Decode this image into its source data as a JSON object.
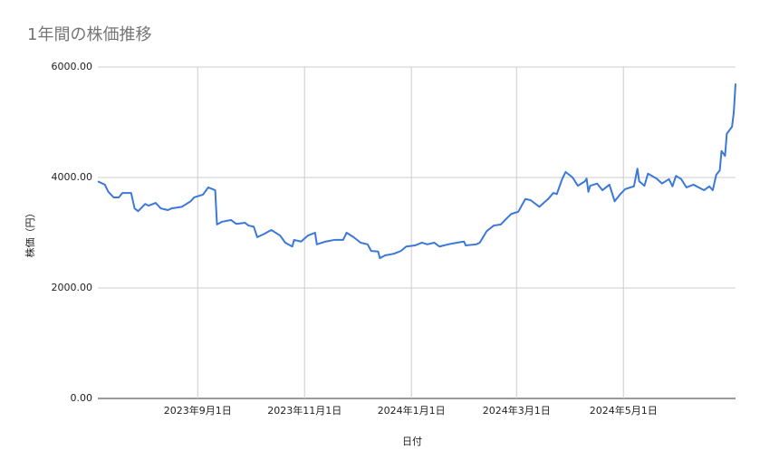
{
  "chart_data": {
    "type": "line",
    "title": "1年間の株価推移",
    "x_label": "日付",
    "y_label": "株価（円）",
    "color": "#3c78d8",
    "grid": true,
    "xlim": [
      "2023-07-06",
      "2024-07-04"
    ],
    "xticks": [
      {
        "value": "2023-09-01",
        "label": "2023年9月1日"
      },
      {
        "value": "2023-11-01",
        "label": "2023年11月1日"
      },
      {
        "value": "2024-01-01",
        "label": "2024年1月1日"
      },
      {
        "value": "2024-03-01",
        "label": "2024年3月1日"
      },
      {
        "value": "2024-05-01",
        "label": "2024年5月1日"
      }
    ],
    "ylim": [
      0,
      6000
    ],
    "yticks": [
      {
        "value": 0,
        "label": "0.00"
      },
      {
        "value": 2000,
        "label": "2000.00"
      },
      {
        "value": 4000,
        "label": "4000.00"
      },
      {
        "value": 6000,
        "label": "6000.00"
      }
    ],
    "x": [
      "2023-07-06",
      "2023-07-10",
      "2023-07-12",
      "2023-07-15",
      "2023-07-18",
      "2023-07-20",
      "2023-07-25",
      "2023-07-27",
      "2023-07-29",
      "2023-08-02",
      "2023-08-04",
      "2023-08-08",
      "2023-08-11",
      "2023-08-15",
      "2023-08-17",
      "2023-08-23",
      "2023-08-28",
      "2023-08-30",
      "2023-09-04",
      "2023-09-07",
      "2023-09-11",
      "2023-09-12",
      "2023-09-15",
      "2023-09-20",
      "2023-09-23",
      "2023-09-28",
      "2023-09-30",
      "2023-10-03",
      "2023-10-05",
      "2023-10-09",
      "2023-10-13",
      "2023-10-18",
      "2023-10-21",
      "2023-10-25",
      "2023-10-26",
      "2023-10-30",
      "2023-11-03",
      "2023-11-07",
      "2023-11-08",
      "2023-11-13",
      "2023-11-18",
      "2023-11-23",
      "2023-11-25",
      "2023-11-29",
      "2023-12-03",
      "2023-12-07",
      "2023-12-09",
      "2023-12-13",
      "2023-12-14",
      "2023-12-17",
      "2023-12-22",
      "2023-12-26",
      "2023-12-29",
      "2024-01-03",
      "2024-01-07",
      "2024-01-10",
      "2024-01-14",
      "2024-01-17",
      "2024-01-22",
      "2024-01-27",
      "2024-01-31",
      "2024-02-01",
      "2024-02-07",
      "2024-02-09",
      "2024-02-13",
      "2024-02-17",
      "2024-02-21",
      "2024-02-25",
      "2024-02-27",
      "2024-03-02",
      "2024-03-06",
      "2024-03-09",
      "2024-03-14",
      "2024-03-19",
      "2024-03-22",
      "2024-03-24",
      "2024-03-27",
      "2024-03-29",
      "2024-04-02",
      "2024-04-05",
      "2024-04-09",
      "2024-04-10",
      "2024-04-11",
      "2024-04-12",
      "2024-04-16",
      "2024-04-19",
      "2024-04-23",
      "2024-04-26",
      "2024-04-29",
      "2024-05-02",
      "2024-05-07",
      "2024-05-09",
      "2024-05-10",
      "2024-05-13",
      "2024-05-15",
      "2024-05-20",
      "2024-05-23",
      "2024-05-27",
      "2024-05-29",
      "2024-05-31",
      "2024-06-03",
      "2024-06-06",
      "2024-06-10",
      "2024-06-13",
      "2024-06-16",
      "2024-06-19",
      "2024-06-21",
      "2024-06-23",
      "2024-06-25",
      "2024-06-26",
      "2024-06-28",
      "2024-06-29",
      "2024-07-02",
      "2024-07-03",
      "2024-07-04"
    ],
    "values": [
      3930,
      3870,
      3740,
      3640,
      3640,
      3720,
      3720,
      3440,
      3390,
      3520,
      3490,
      3540,
      3440,
      3410,
      3440,
      3470,
      3570,
      3640,
      3690,
      3820,
      3770,
      3150,
      3200,
      3230,
      3160,
      3180,
      3130,
      3110,
      2920,
      2980,
      3050,
      2950,
      2820,
      2750,
      2870,
      2840,
      2950,
      3000,
      2790,
      2840,
      2870,
      2870,
      3000,
      2920,
      2820,
      2790,
      2670,
      2660,
      2540,
      2590,
      2620,
      2670,
      2750,
      2770,
      2820,
      2790,
      2820,
      2750,
      2790,
      2820,
      2840,
      2770,
      2790,
      2820,
      3030,
      3130,
      3150,
      3280,
      3340,
      3380,
      3610,
      3590,
      3470,
      3610,
      3720,
      3700,
      3970,
      4100,
      4000,
      3850,
      3930,
      3980,
      3740,
      3850,
      3890,
      3770,
      3870,
      3570,
      3690,
      3790,
      3840,
      4160,
      3930,
      3850,
      4070,
      3980,
      3890,
      3970,
      3840,
      4030,
      3970,
      3820,
      3870,
      3820,
      3770,
      3840,
      3770,
      4050,
      4130,
      4480,
      4390,
      4790,
      4920,
      5180,
      5700
    ]
  }
}
